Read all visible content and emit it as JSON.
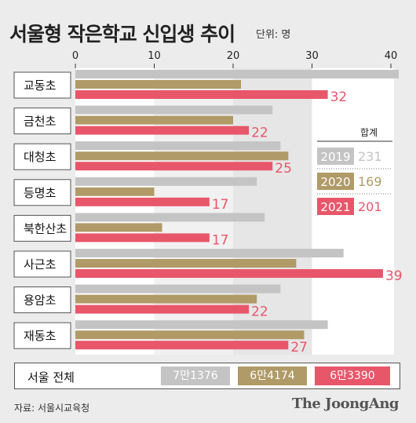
{
  "title": "서울형 작은학교 신입생 추이",
  "unit": "단위: 명",
  "chart_data": {
    "type": "bar",
    "orientation": "horizontal",
    "title": "서울형 작은학교 신입생 추이",
    "xlim": [
      0,
      40
    ],
    "ticks": [
      0,
      10,
      20,
      30,
      40
    ],
    "categories": [
      "교동초",
      "금천초",
      "대청초",
      "등명초",
      "북한산초",
      "사근초",
      "용암초",
      "재동초"
    ],
    "series": [
      {
        "name": "2019",
        "color": "#c4c4c4",
        "values": [
          41,
          25,
          26,
          23,
          24,
          34,
          26,
          32
        ]
      },
      {
        "name": "2020",
        "color": "#b09a67",
        "values": [
          21,
          20,
          27,
          10,
          11,
          28,
          23,
          29
        ]
      },
      {
        "name": "2021",
        "color": "#e8566a",
        "values": [
          32,
          22,
          25,
          17,
          17,
          39,
          22,
          27
        ]
      }
    ],
    "data_labels_series": "2021",
    "legend": {
      "header": "합계",
      "items": [
        {
          "year": "2019",
          "total": "231",
          "color": "#c4c4c4",
          "total_color": "#c4c4c4"
        },
        {
          "year": "2020",
          "total": "169",
          "color": "#b09a67",
          "total_color": "#b09a67"
        },
        {
          "year": "2021",
          "total": "201",
          "color": "#e8566a",
          "total_color": "#e8566a"
        }
      ]
    }
  },
  "total": {
    "label": "서울 전체",
    "values": [
      {
        "text": "7만1376",
        "color": "#c4c4c4"
      },
      {
        "text": "6만4174",
        "color": "#b09a67"
      },
      {
        "text": "6만3390",
        "color": "#e8566a"
      }
    ]
  },
  "source": "자료: 서울시교육청",
  "logo": "The JoongAng"
}
